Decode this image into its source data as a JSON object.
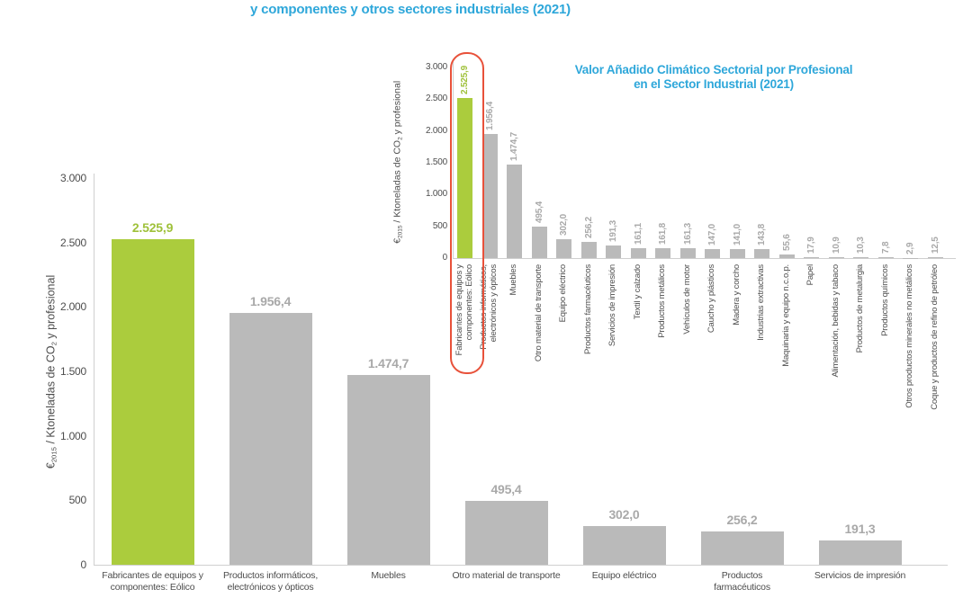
{
  "colors": {
    "title_blue": "#2ea7da",
    "green_bar": "#abcc3d",
    "green_text": "#9fc13a",
    "gray_bar": "#bababa",
    "gray_value_text": "#a9a9a9",
    "dark_text": "#4d4d4d",
    "axis_line": "#cfcfcf",
    "highlight_red": "#e8513a"
  },
  "chart_data": [
    {
      "id": "main",
      "type": "bar",
      "title": "y componentes y otros sectores industriales (2021)",
      "ylabel": "€2015 / Ktoneladas de CO2 y profesional",
      "ylabel_parts": {
        "euro": "€",
        "euro_sub": "2015",
        "mid": " / Ktoneladas de CO",
        "co_sub": "2",
        "post": " y profesional"
      },
      "ylim": [
        0,
        3000
      ],
      "yticks": [
        "0",
        "500",
        "1.000",
        "1.500",
        "2.000",
        "2.500",
        "3.000"
      ],
      "grid": false,
      "legend": "none",
      "categories": [
        "Fabricantes de equipos y\ncomponentes: Eólico",
        "Productos informáticos,\nelectrónicos y ópticos",
        "Muebles",
        "Otro material de transporte",
        "Equipo eléctrico",
        "Productos\nfarmacéuticos",
        "Servicios de impresión"
      ],
      "values": [
        2525.9,
        1956.4,
        1474.7,
        495.4,
        302.0,
        256.2,
        191.3
      ],
      "value_labels": [
        "2.525,9",
        "1.956,4",
        "1.474,7",
        "495,4",
        "302,0",
        "256,2",
        "191,3"
      ],
      "highlight_index": 0
    },
    {
      "id": "inset",
      "type": "bar",
      "title": "Valor Añadido Climático Sectorial por Profesional\nen el Sector Industrial (2021)",
      "ylabel": "€2015 / Ktoneladas de CO2 y profesional",
      "ylabel_parts": {
        "euro": "€",
        "euro_sub": "2015",
        "mid": " / Ktoneladas de CO",
        "co_sub": "2",
        "post": " y profesional"
      },
      "ylim": [
        0,
        3000
      ],
      "yticks": [
        "0",
        "500",
        "1.000",
        "1.500",
        "2.000",
        "2.500",
        "3.000"
      ],
      "grid": false,
      "legend": "none",
      "annotation": "red capsule outline around highlighted first bar",
      "categories": [
        "Fabricantes de equipos y\ncomponentes: Eólico",
        "Productos informáticos,\nelectrónicos y ópticos",
        "Muebles",
        "Otro material de transporte",
        "Equipo eléctrico",
        "Productos farmacéuticos",
        "Servicios de impresión",
        "Textil y calzado",
        "Productos metálicos",
        "Vehículos de motor",
        "Caucho y plásticos",
        "Madera y corcho",
        "Industrias extractivas",
        "Maquinaria y equipo n.c.o.p.",
        "Papel",
        "Alimentación, bebidas y tabaco",
        "Productos de metalurgia",
        "Productos químicos",
        "Otros productos minerales no metálicos",
        "Coque y productos de refino de petróleo"
      ],
      "values": [
        2525.9,
        1956.4,
        1474.7,
        495.4,
        302.0,
        256.2,
        191.3,
        161.1,
        161.8,
        161.3,
        147.0,
        141.0,
        143.8,
        55.6,
        17.9,
        10.9,
        10.3,
        7.8,
        2.9,
        12.5
      ],
      "value_labels": [
        "2.525,9",
        "1.956,4",
        "1.474,7",
        "495,4",
        "302,0",
        "256,2",
        "191,3",
        "161,1",
        "161,8",
        "161,3",
        "147,0",
        "141,0",
        "143,8",
        "55,6",
        "17,9",
        "10,9",
        "10,3",
        "7,8",
        "2,9",
        "12,5"
      ],
      "highlight_index": 0
    }
  ]
}
